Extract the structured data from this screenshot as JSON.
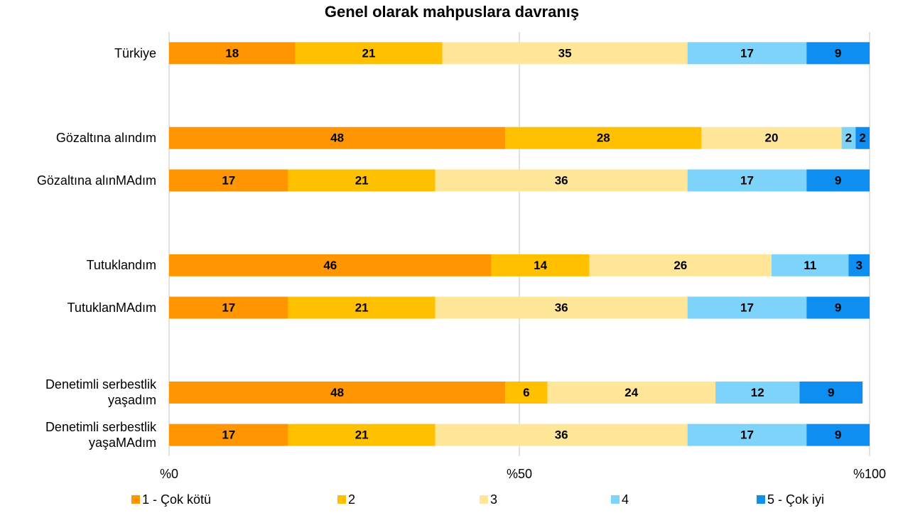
{
  "chart_data": {
    "type": "stacked_barh",
    "title": "Genel olarak mahpuslara davranış",
    "categories": [
      "Türkiye",
      null,
      "Gözaltına alındım",
      "Gözaltına alınMAdım",
      null,
      "Tutuklandım",
      "TutuklanMAdım",
      null,
      "Denetimli serbestlik\nyaşadım",
      "Denetimli serbestlik\nyaşaMAdım"
    ],
    "series": [
      {
        "name": "1 - Çok kötü",
        "color": "#ff9500",
        "values": [
          18,
          null,
          48,
          17,
          null,
          46,
          17,
          null,
          48,
          17
        ]
      },
      {
        "name": "2",
        "color": "#ffc000",
        "values": [
          21,
          null,
          28,
          21,
          null,
          14,
          21,
          null,
          6,
          21
        ]
      },
      {
        "name": "3",
        "color": "#ffe699",
        "values": [
          35,
          null,
          20,
          36,
          null,
          26,
          36,
          null,
          24,
          36
        ]
      },
      {
        "name": "4",
        "color": "#7dd3f9",
        "values": [
          17,
          null,
          2,
          17,
          null,
          11,
          17,
          null,
          12,
          17
        ]
      },
      {
        "name": "5 - Çok iyi",
        "color": "#0e8ef0",
        "values": [
          9,
          null,
          2,
          9,
          null,
          3,
          9,
          null,
          9,
          9
        ]
      }
    ],
    "xlim": [
      0,
      100
    ],
    "xticks": [
      {
        "value": 0,
        "label": "%0"
      },
      {
        "value": 50,
        "label": "%50"
      },
      {
        "value": 100,
        "label": "%100"
      }
    ],
    "grid": true,
    "legend": "bottom"
  }
}
